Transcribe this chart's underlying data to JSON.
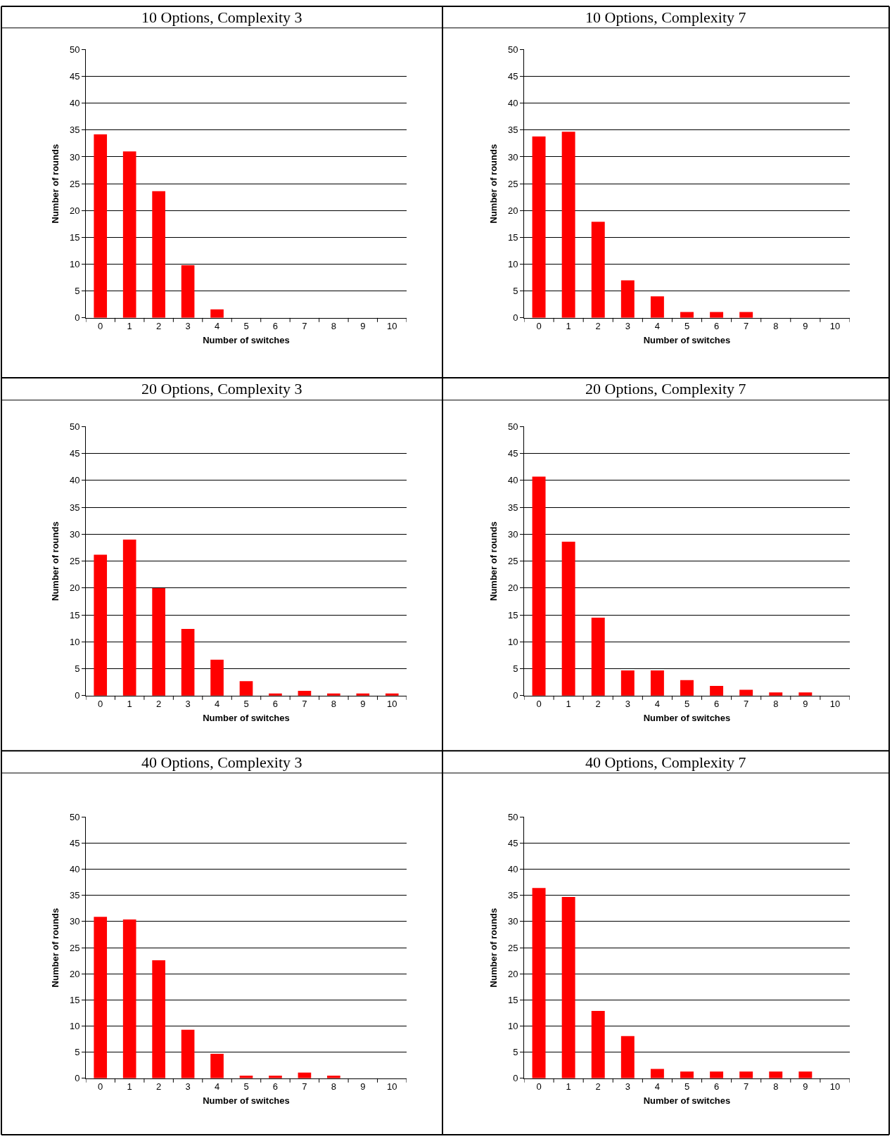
{
  "chart_data": [
    {
      "type": "bar",
      "title": "10 Options, Complexity 3",
      "xlabel": "Number of switches",
      "ylabel": "Number of rounds",
      "categories": [
        "0",
        "1",
        "2",
        "3",
        "4",
        "5",
        "6",
        "7",
        "8",
        "9",
        "10"
      ],
      "values": [
        34.2,
        31,
        23.6,
        9.8,
        1.6,
        0,
        0,
        0,
        0,
        0,
        0
      ],
      "color": "#ff0000",
      "ylim": [
        0,
        50
      ],
      "yticks": [
        0,
        5,
        10,
        15,
        20,
        25,
        30,
        35,
        40,
        45,
        50
      ],
      "grid": "y"
    },
    {
      "type": "bar",
      "title": "10 Options, Complexity 7",
      "xlabel": "Number of switches",
      "ylabel": "Number of rounds",
      "categories": [
        "0",
        "1",
        "2",
        "3",
        "4",
        "5",
        "6",
        "7",
        "8",
        "9",
        "10"
      ],
      "values": [
        33.8,
        34.7,
        17.9,
        7,
        4,
        1.1,
        1.1,
        1.1,
        0,
        0,
        0
      ],
      "color": "#ff0000",
      "ylim": [
        0,
        50
      ],
      "yticks": [
        0,
        5,
        10,
        15,
        20,
        25,
        30,
        35,
        40,
        45,
        50
      ],
      "grid": "y"
    },
    {
      "type": "bar",
      "title": "20 Options, Complexity 3",
      "xlabel": "Number of switches",
      "ylabel": "Number of rounds",
      "categories": [
        "0",
        "1",
        "2",
        "3",
        "4",
        "5",
        "6",
        "7",
        "8",
        "9",
        "10"
      ],
      "values": [
        26.2,
        29,
        20,
        12.4,
        6.7,
        2.7,
        0.4,
        0.9,
        0.4,
        0.4,
        0.4
      ],
      "color": "#ff0000",
      "ylim": [
        0,
        50
      ],
      "yticks": [
        0,
        5,
        10,
        15,
        20,
        25,
        30,
        35,
        40,
        45,
        50
      ],
      "grid": "y"
    },
    {
      "type": "bar",
      "title": "20 Options, Complexity 7",
      "xlabel": "Number of switches",
      "ylabel": "Number of rounds",
      "categories": [
        "0",
        "1",
        "2",
        "3",
        "4",
        "5",
        "6",
        "7",
        "8",
        "9",
        "10"
      ],
      "values": [
        40.7,
        28.6,
        14.5,
        4.7,
        4.7,
        2.9,
        1.8,
        1.1,
        0.6,
        0.6,
        0
      ],
      "color": "#ff0000",
      "ylim": [
        0,
        50
      ],
      "yticks": [
        0,
        5,
        10,
        15,
        20,
        25,
        30,
        35,
        40,
        45,
        50
      ],
      "grid": "y"
    },
    {
      "type": "bar",
      "title": "40 Options, Complexity 3",
      "xlabel": "Number of switches",
      "ylabel": "Number of rounds",
      "categories": [
        "0",
        "1",
        "2",
        "3",
        "4",
        "5",
        "6",
        "7",
        "8",
        "9",
        "10"
      ],
      "values": [
        30.9,
        30.4,
        22.6,
        9.3,
        4.7,
        0.5,
        0.5,
        1.1,
        0.5,
        0,
        0
      ],
      "color": "#ff0000",
      "ylim": [
        0,
        50
      ],
      "yticks": [
        0,
        5,
        10,
        15,
        20,
        25,
        30,
        35,
        40,
        45,
        50
      ],
      "grid": "y"
    },
    {
      "type": "bar",
      "title": "40 Options, Complexity 7",
      "xlabel": "Number of switches",
      "ylabel": "Number of rounds",
      "categories": [
        "0",
        "1",
        "2",
        "3",
        "4",
        "5",
        "6",
        "7",
        "8",
        "9",
        "10"
      ],
      "values": [
        36.4,
        34.7,
        12.9,
        8.1,
        1.8,
        1.3,
        1.3,
        1.3,
        1.3,
        1.3,
        0
      ],
      "color": "#ff0000",
      "ylim": [
        0,
        50
      ],
      "yticks": [
        0,
        5,
        10,
        15,
        20,
        25,
        30,
        35,
        40,
        45,
        50
      ],
      "grid": "y"
    }
  ]
}
